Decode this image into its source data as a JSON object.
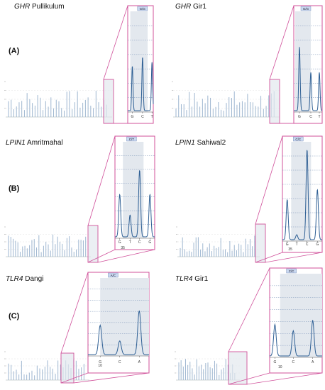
{
  "figure": {
    "rows": [
      {
        "letter": "(A)",
        "panels": [
          {
            "gene": "GHR",
            "breed": "Pullikulum",
            "badge": "G/G",
            "marker_labels": [
              "G",
              "C",
              "T"
            ],
            "extra_label": ""
          },
          {
            "gene": "GHR",
            "breed": "Gir1",
            "badge": "G/G",
            "marker_labels": [
              "G",
              "C",
              "T"
            ],
            "extra_label": ""
          }
        ]
      },
      {
        "letter": "(B)",
        "panels": [
          {
            "gene": "LPIN1",
            "breed": "Amritmahal",
            "badge": "C/T",
            "marker_labels": [
              "G",
              "T",
              "C",
              "G"
            ],
            "extra_label": "35"
          },
          {
            "gene": "LPIN1",
            "breed": "Sahiwal2",
            "badge": "C/C",
            "marker_labels": [
              "G",
              "T",
              "C",
              "G"
            ],
            "extra_label": "35"
          }
        ]
      },
      {
        "letter": "(C)",
        "panels": [
          {
            "gene": "TLR4",
            "breed": "Dangi",
            "badge": "A/C",
            "marker_labels": [
              "G",
              "C",
              "A"
            ],
            "extra_label": "10"
          },
          {
            "gene": "TLR4",
            "breed": "Gir1",
            "badge": "C/C",
            "marker_labels": [
              "G",
              "C",
              "A"
            ],
            "extra_label": "10"
          }
        ]
      }
    ],
    "colors": {
      "accent": "#d0509a",
      "peak": "#2e5f94",
      "bar": "#9eb6d0",
      "highlight": "#e3e8ee",
      "badge": "#c9d8f0"
    }
  }
}
